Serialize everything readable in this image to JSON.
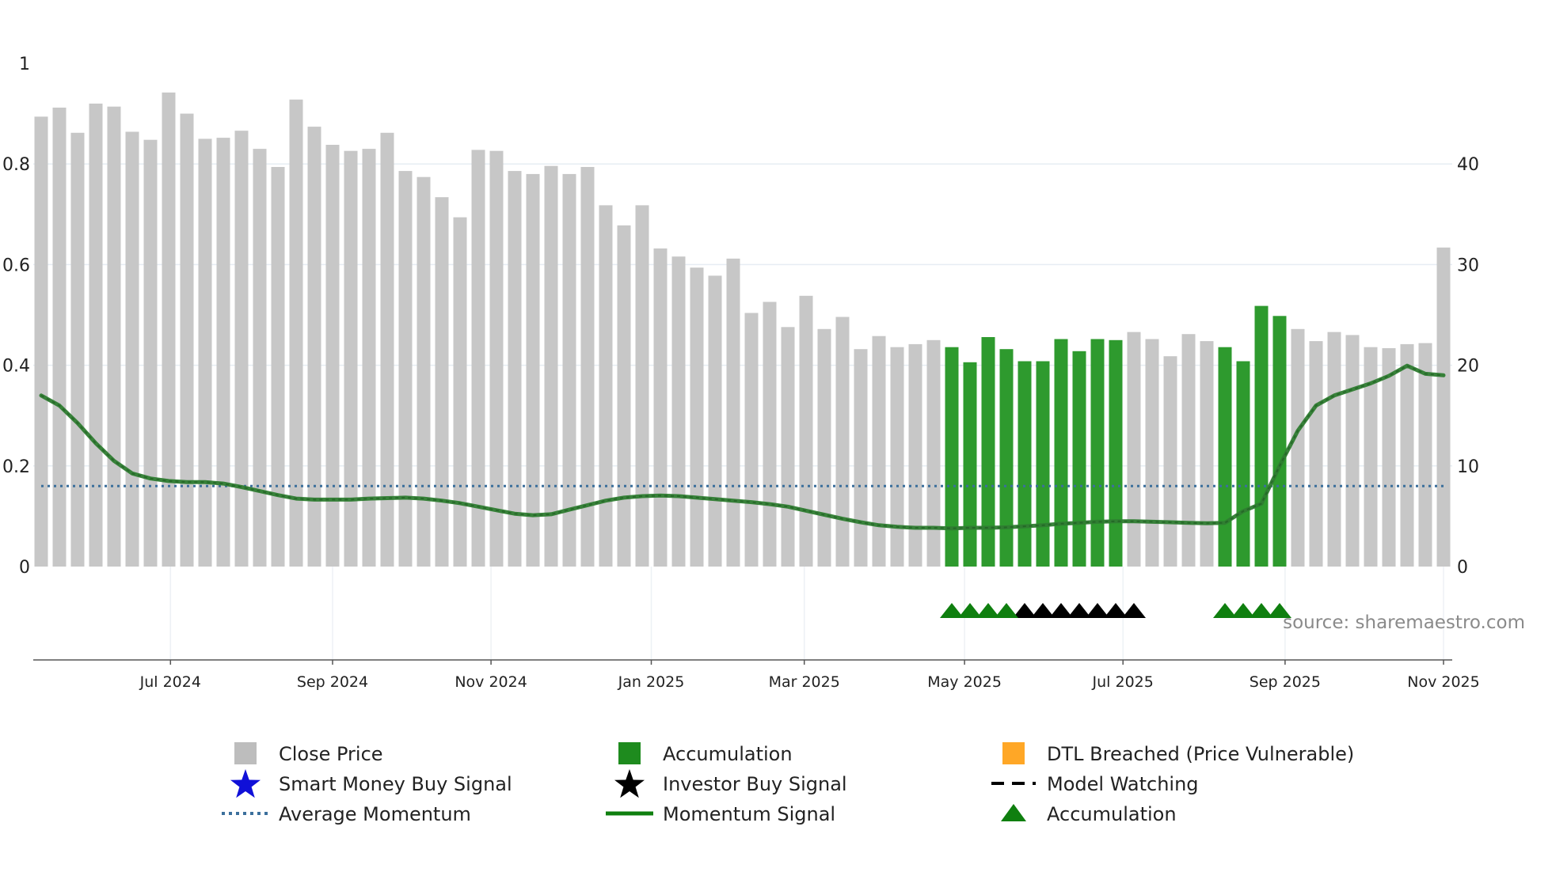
{
  "chart_data": {
    "type": "bar",
    "title": "",
    "source": "source: sharemaestro.com",
    "left_axis": {
      "min": 0,
      "max": 1,
      "ticks": [
        "0",
        "0.2",
        "0.4",
        "0.6",
        "0.8",
        "1"
      ]
    },
    "right_axis": {
      "min": 0,
      "max": 50,
      "ticks": [
        "0",
        "10",
        "20",
        "30",
        "40"
      ]
    },
    "x_ticks": [
      "Jul 2024",
      "Sep 2024",
      "Nov 2024",
      "Jan 2025",
      "Mar 2025",
      "May 2025",
      "Jul 2025",
      "Sep 2025",
      "Nov 2025"
    ],
    "weeks": 78,
    "x_tick_weeks": [
      7.1,
      16.0,
      24.7,
      33.5,
      41.9,
      50.7,
      59.4,
      68.3,
      77.0
    ],
    "close_price": [
      44.7,
      45.6,
      43.1,
      46.0,
      45.7,
      43.2,
      42.4,
      47.1,
      45.0,
      42.5,
      42.6,
      43.3,
      41.5,
      39.7,
      46.4,
      43.7,
      41.9,
      41.3,
      41.5,
      43.1,
      39.3,
      38.7,
      36.7,
      34.7,
      41.4,
      41.3,
      39.3,
      39.0,
      39.8,
      39.0,
      39.7,
      35.9,
      33.9,
      35.9,
      31.6,
      30.8,
      29.7,
      28.9,
      30.6,
      25.2,
      26.3,
      23.8,
      26.9,
      23.6,
      24.8,
      21.6,
      22.9,
      21.8,
      22.1,
      22.5,
      21.8,
      20.3,
      22.8,
      21.6,
      20.4,
      20.4,
      22.6,
      21.4,
      22.6,
      22.5,
      23.3,
      22.6,
      20.9,
      23.1,
      22.4,
      21.8,
      20.4,
      25.9,
      24.9,
      23.6,
      22.4,
      23.3,
      23.0,
      21.8,
      21.7,
      22.1,
      22.2,
      31.7
    ],
    "accumulation_weeks": [
      50,
      51,
      52,
      53,
      54,
      55,
      56,
      57,
      58,
      59,
      65,
      66,
      67,
      68
    ],
    "momentum_signal": [
      0.34,
      0.32,
      0.285,
      0.245,
      0.21,
      0.185,
      0.175,
      0.17,
      0.168,
      0.168,
      0.165,
      0.158,
      0.15,
      0.142,
      0.135,
      0.133,
      0.133,
      0.133,
      0.135,
      0.136,
      0.137,
      0.135,
      0.131,
      0.126,
      0.119,
      0.112,
      0.105,
      0.102,
      0.104,
      0.113,
      0.122,
      0.131,
      0.137,
      0.14,
      0.141,
      0.14,
      0.137,
      0.134,
      0.131,
      0.128,
      0.124,
      0.119,
      0.111,
      0.103,
      0.095,
      0.088,
      0.082,
      0.079,
      0.077,
      0.077,
      0.076,
      0.077,
      0.077,
      0.078,
      0.08,
      0.082,
      0.085,
      0.087,
      0.089,
      0.09,
      0.09,
      0.089,
      0.088,
      0.087,
      0.086,
      0.087,
      0.11,
      0.125,
      0.2,
      0.27,
      0.32,
      0.34,
      0.352,
      0.364,
      0.379,
      0.399,
      0.383,
      0.38
    ],
    "average_momentum": 0.16,
    "green_triangle_weeks": [
      50,
      51,
      52,
      53,
      65,
      66,
      67,
      68
    ],
    "black_triangle_weeks": [
      54,
      55,
      56,
      57,
      58,
      59,
      60
    ],
    "colors": {
      "close_price": "#c7c7c7",
      "accumulation": "#2e9a2e",
      "momentum": "#2f7d32",
      "average": "#3b6f9c",
      "triangle_green": "#0f7f0f",
      "triangle_black": "#000000",
      "dtl": "#ffa726",
      "smart_money": "#1010d8"
    },
    "legend": [
      {
        "label": "Close Price",
        "symbol": "square",
        "color": "#bdbdbd"
      },
      {
        "label": "Accumulation",
        "symbol": "square",
        "color": "#1e8b1e"
      },
      {
        "label": "DTL Breached (Price Vulnerable)",
        "symbol": "square",
        "color": "#ffa726"
      },
      {
        "label": "Smart Money Buy Signal",
        "symbol": "star",
        "color": "#1010d8"
      },
      {
        "label": "Investor Buy Signal",
        "symbol": "star",
        "color": "#000000"
      },
      {
        "label": "Model Watching",
        "symbol": "dash",
        "color": "#000000"
      },
      {
        "label": "Average Momentum",
        "symbol": "dotted",
        "color": "#3b6f9c"
      },
      {
        "label": "Momentum Signal",
        "symbol": "line",
        "color": "#0f7f0f"
      },
      {
        "label": "Accumulation",
        "symbol": "triangle",
        "color": "#0f7f0f"
      }
    ]
  }
}
